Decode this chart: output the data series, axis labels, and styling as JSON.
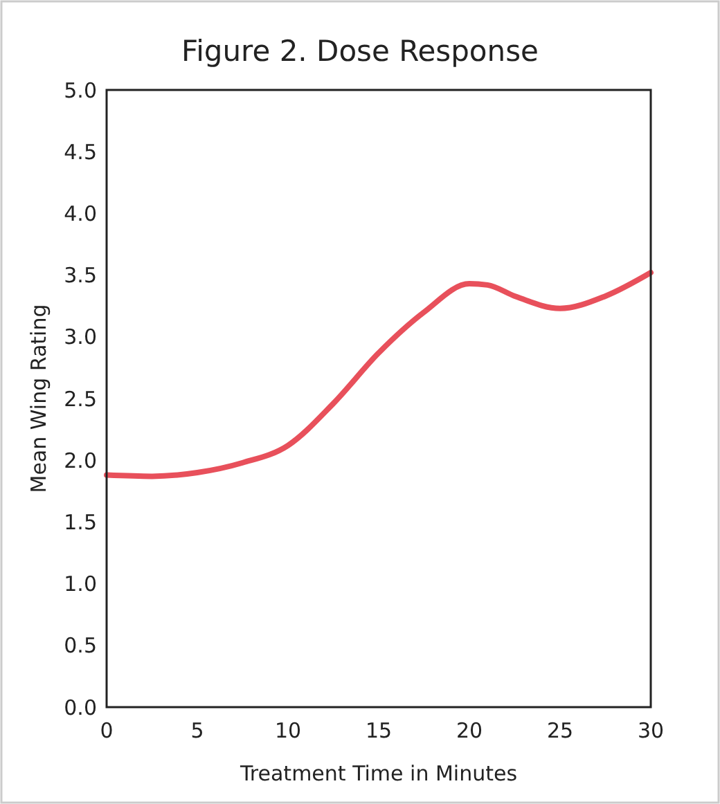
{
  "chart_data": {
    "type": "line",
    "title": "Figure 2. Dose Response",
    "xlabel": "Treatment Time in Minutes",
    "ylabel": "Mean Wing Rating",
    "x": [
      0,
      2.5,
      5,
      7.5,
      10,
      12.5,
      15,
      17.5,
      20,
      21,
      22.5,
      25,
      27.5,
      30
    ],
    "series": [
      {
        "color": "#e8505b",
        "values": [
          1.88,
          1.87,
          1.9,
          1.98,
          2.12,
          2.46,
          2.87,
          3.2,
          3.43,
          3.42,
          3.33,
          3.23,
          3.33,
          3.52
        ]
      }
    ],
    "xlim": [
      0,
      30
    ],
    "xticks": [
      0,
      5,
      10,
      15,
      20,
      25,
      30
    ],
    "ylim": [
      0,
      5
    ],
    "yticks": [
      {
        "value": 0,
        "label": "0.0"
      },
      {
        "value": 0.5,
        "label": "0.5"
      },
      {
        "value": 1,
        "label": "1.0"
      },
      {
        "value": 1.5,
        "label": "1.5"
      },
      {
        "value": 2,
        "label": "2.0"
      },
      {
        "value": 2.5,
        "label": "2.5"
      },
      {
        "value": 3,
        "label": "3.0"
      },
      {
        "value": 3.5,
        "label": "3.5"
      },
      {
        "value": 4,
        "label": "4.0"
      },
      {
        "value": 4.5,
        "label": "4.5"
      },
      {
        "value": 5,
        "label": "5.0"
      }
    ],
    "grid": false,
    "marker": "none",
    "line_style": "solid"
  }
}
